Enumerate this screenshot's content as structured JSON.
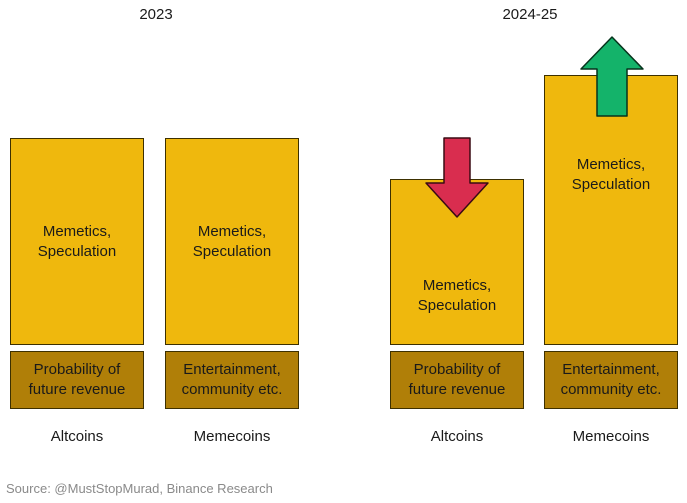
{
  "periods": [
    {
      "title": "2023",
      "left_label": "Altcoins",
      "right_label": "Memecoins"
    },
    {
      "title": "2024-25",
      "left_label": "Altcoins",
      "right_label": "Memecoins"
    }
  ],
  "blocks": {
    "speculation": "Memetics,\nSpeculation",
    "altcoin_base": "Probability of\nfuture revenue",
    "memecoin_base": "Entertainment,\ncommunity etc."
  },
  "arrows": {
    "altcoins_2024": {
      "direction": "down",
      "color": "#d92d4f"
    },
    "memecoins_2024": {
      "direction": "up",
      "color": "#14b36a"
    }
  },
  "colors": {
    "block_top": "#efb80d",
    "block_bottom": "#b07f08"
  },
  "source": "Source: @MustStopMurad, Binance Research"
}
